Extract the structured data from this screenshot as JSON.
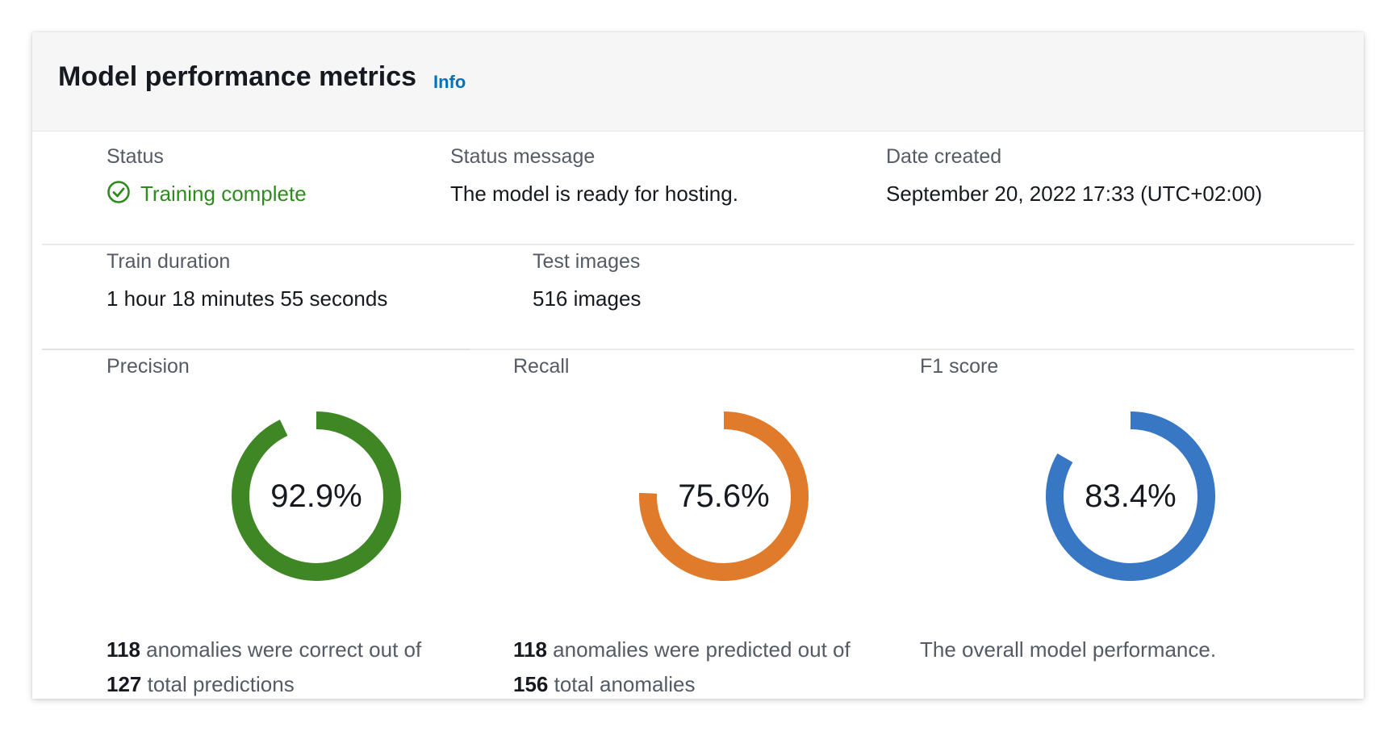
{
  "header": {
    "title": "Model performance metrics",
    "info_label": "Info"
  },
  "summary": {
    "status_label": "Status",
    "status_value": "Training complete",
    "status_message_label": "Status message",
    "status_message_value": "The model is ready for hosting.",
    "date_created_label": "Date created",
    "date_created_value": "September 20, 2022 17:33 (UTC+02:00)",
    "train_duration_label": "Train duration",
    "train_duration_value": "1 hour 18 minutes 55 seconds",
    "test_images_label": "Test images",
    "test_images_value": "516 images"
  },
  "metrics": [
    {
      "label": "Precision",
      "value_text": "92.9%",
      "fraction": 0.929,
      "color": "#3f8624",
      "desc_line1_bold": "118",
      "desc_line1_rest": " anomalies were correct out of",
      "desc_line2_bold": "127",
      "desc_line2_rest": " total predictions"
    },
    {
      "label": "Recall",
      "value_text": "75.6%",
      "fraction": 0.756,
      "color": "#e07b2c",
      "desc_line1_bold": "118",
      "desc_line1_rest": " anomalies were predicted out of",
      "desc_line2_bold": "156",
      "desc_line2_rest": " total anomalies"
    },
    {
      "label": "F1 score",
      "value_text": "83.4%",
      "fraction": 0.834,
      "color": "#3777c4",
      "desc_line1_plain": "The overall model performance."
    }
  ],
  "colors": {
    "status_success": "#2e8b1e",
    "link": "#0073bb",
    "track": "#ffffff"
  },
  "icons": {
    "status": "check-circle-icon"
  }
}
